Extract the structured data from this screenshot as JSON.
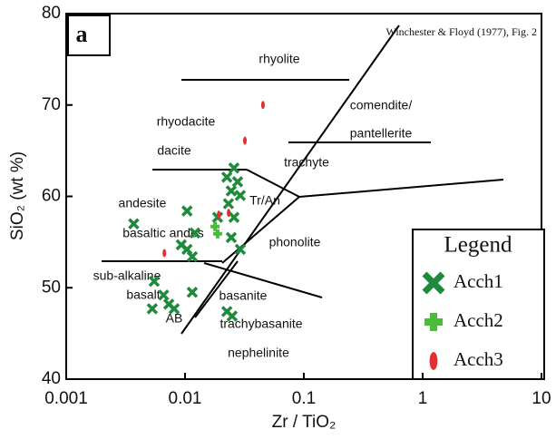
{
  "chart_data": {
    "type": "scatter",
    "xlabel": "Zr / TiO₂",
    "ylabel": "SiO₂ (wt %)",
    "panel_label": "a",
    "source": "Winchester & Floyd (1977), Fig. 2",
    "xscale": "log",
    "xlim": [
      0.001,
      10
    ],
    "xticks": [
      0.001,
      0.01,
      0.1,
      1,
      10
    ],
    "ylim": [
      40,
      80
    ],
    "yticks": [
      40,
      50,
      60,
      70,
      80
    ],
    "legend": {
      "title": "Legend",
      "position": "lower right"
    },
    "fields": [
      "rhyolite",
      "comendite/",
      "pantellerite",
      "rhyodacite",
      "dacite",
      "trachyte",
      "andesite",
      "Tr/An",
      "basaltic andes",
      "phonolite",
      "sub-alkaline",
      "basalt",
      "basanite",
      "AB",
      "trachybasanite",
      "nephelinite"
    ],
    "series": [
      {
        "name": "Acch1",
        "color": "#1e8a3c",
        "marker": "x",
        "x": [
          0.0037,
          0.0104,
          0.0093,
          0.0104,
          0.0115,
          0.0121,
          0.0055,
          0.0066,
          0.0073,
          0.0081,
          0.0053,
          0.0115,
          0.0188,
          0.0258,
          0.0225,
          0.0277,
          0.0245,
          0.0292,
          0.0232,
          0.0258,
          0.0245,
          0.0292,
          0.0225,
          0.0249
        ],
        "y": [
          57.0,
          58.4,
          54.7,
          54.2,
          53.4,
          56.0,
          50.7,
          49.2,
          48.2,
          47.7,
          47.7,
          49.5,
          57.7,
          63.1,
          62.1,
          61.6,
          60.6,
          60.1,
          59.2,
          57.7,
          55.5,
          54.2,
          47.4,
          46.9
        ]
      },
      {
        "name": "Acch2",
        "color": "#4cbb3c",
        "marker": "plus",
        "x": [
          0.0179,
          0.0188
        ],
        "y": [
          56.7,
          55.9
        ]
      },
      {
        "name": "Acch3",
        "color": "#e03030",
        "marker": "ellipse",
        "x": [
          0.0453,
          0.0319,
          0.0192,
          0.0067,
          0.0233
        ],
        "y": [
          70.0,
          66.1,
          58.0,
          53.8,
          58.2
        ]
      }
    ]
  }
}
